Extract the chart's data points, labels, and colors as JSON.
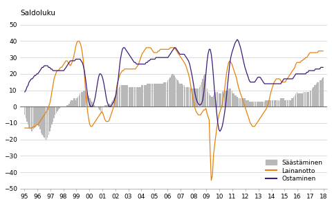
{
  "title": "Saldoluku",
  "xlim": [
    1994.7,
    2018.3
  ],
  "ylim": [
    -50,
    50
  ],
  "yticks": [
    -50,
    -40,
    -30,
    -20,
    -10,
    0,
    10,
    20,
    30,
    40,
    50
  ],
  "xtick_labels": [
    "95",
    "96",
    "97",
    "98",
    "99",
    "00",
    "01",
    "02",
    "03",
    "04",
    "05",
    "06",
    "07",
    "08",
    "09",
    "10",
    "11",
    "12",
    "13",
    "14",
    "15",
    "16",
    "17",
    "18"
  ],
  "xtick_positions": [
    1995,
    1996,
    1997,
    1998,
    1999,
    2000,
    2001,
    2002,
    2003,
    2004,
    2005,
    2006,
    2007,
    2008,
    2009,
    2010,
    2011,
    2012,
    2013,
    2014,
    2015,
    2016,
    2017,
    2018
  ],
  "bar_color": "#b8b8b8",
  "line_color_lainanotto": "#e8820a",
  "line_color_ostaminen": "#3d1a7a",
  "legend_labels": [
    "Säästäminen",
    "Lainanotto",
    "Ostaminen"
  ],
  "saastaminen_x": [
    1995.04,
    1995.12,
    1995.21,
    1995.29,
    1995.37,
    1995.46,
    1995.54,
    1995.62,
    1995.71,
    1995.79,
    1995.87,
    1995.96,
    1996.04,
    1996.12,
    1996.21,
    1996.29,
    1996.37,
    1996.46,
    1996.54,
    1996.62,
    1996.71,
    1996.79,
    1996.87,
    1996.96,
    1997.04,
    1997.12,
    1997.21,
    1997.29,
    1997.37,
    1997.46,
    1997.54,
    1997.62,
    1997.71,
    1997.79,
    1997.87,
    1997.96,
    1998.04,
    1998.12,
    1998.21,
    1998.29,
    1998.37,
    1998.46,
    1998.54,
    1998.62,
    1998.71,
    1998.79,
    1998.87,
    1998.96,
    1999.04,
    1999.12,
    1999.21,
    1999.29,
    1999.37,
    1999.46,
    1999.54,
    1999.62,
    1999.71,
    1999.79,
    1999.87,
    1999.96,
    2000.04,
    2000.12,
    2000.21,
    2000.29,
    2000.37,
    2000.46,
    2000.54,
    2000.62,
    2000.71,
    2000.79,
    2000.87,
    2000.96,
    2001.04,
    2001.12,
    2001.21,
    2001.29,
    2001.37,
    2001.46,
    2001.54,
    2001.62,
    2001.71,
    2001.79,
    2001.87,
    2001.96,
    2002.04,
    2002.12,
    2002.21,
    2002.29,
    2002.37,
    2002.46,
    2002.54,
    2002.62,
    2002.71,
    2002.79,
    2002.87,
    2002.96,
    2003.04,
    2003.12,
    2003.21,
    2003.29,
    2003.37,
    2003.46,
    2003.54,
    2003.62,
    2003.71,
    2003.79,
    2003.87,
    2003.96,
    2004.04,
    2004.12,
    2004.21,
    2004.29,
    2004.37,
    2004.46,
    2004.54,
    2004.62,
    2004.71,
    2004.79,
    2004.87,
    2004.96,
    2005.04,
    2005.12,
    2005.21,
    2005.29,
    2005.37,
    2005.46,
    2005.54,
    2005.62,
    2005.71,
    2005.79,
    2005.87,
    2005.96,
    2006.04,
    2006.12,
    2006.21,
    2006.29,
    2006.37,
    2006.46,
    2006.54,
    2006.62,
    2006.71,
    2006.79,
    2006.87,
    2006.96,
    2007.04,
    2007.12,
    2007.21,
    2007.29,
    2007.37,
    2007.46,
    2007.54,
    2007.62,
    2007.71,
    2007.79,
    2007.87,
    2007.96,
    2008.04,
    2008.12,
    2008.21,
    2008.29,
    2008.37,
    2008.46,
    2008.54,
    2008.62,
    2008.71,
    2008.79,
    2008.87,
    2008.96,
    2009.04,
    2009.12,
    2009.21,
    2009.29,
    2009.37,
    2009.46,
    2009.54,
    2009.62,
    2009.71,
    2009.79,
    2009.87,
    2009.96,
    2010.04,
    2010.12,
    2010.21,
    2010.29,
    2010.37,
    2010.46,
    2010.54,
    2010.62,
    2010.71,
    2010.79,
    2010.87,
    2010.96,
    2011.04,
    2011.12,
    2011.21,
    2011.29,
    2011.37,
    2011.46,
    2011.54,
    2011.62,
    2011.71,
    2011.79,
    2011.87,
    2011.96,
    2012.04,
    2012.12,
    2012.21,
    2012.29,
    2012.37,
    2012.46,
    2012.54,
    2012.62,
    2012.71,
    2012.79,
    2012.87,
    2012.96,
    2013.04,
    2013.12,
    2013.21,
    2013.29,
    2013.37,
    2013.46,
    2013.54,
    2013.62,
    2013.71,
    2013.79,
    2013.87,
    2013.96,
    2014.04,
    2014.12,
    2014.21,
    2014.29,
    2014.37,
    2014.46,
    2014.54,
    2014.62,
    2014.71,
    2014.79,
    2014.87,
    2014.96,
    2015.04,
    2015.12,
    2015.21,
    2015.29,
    2015.37,
    2015.46,
    2015.54,
    2015.62,
    2015.71,
    2015.79,
    2015.87,
    2015.96,
    2016.04,
    2016.12,
    2016.21,
    2016.29,
    2016.37,
    2016.46,
    2016.54,
    2016.62,
    2016.71,
    2016.79,
    2016.87,
    2016.96,
    2017.04,
    2017.12,
    2017.21,
    2017.29,
    2017.37,
    2017.46,
    2017.54,
    2017.62,
    2017.71,
    2017.79,
    2017.87,
    2017.96
  ],
  "saastaminen_y": [
    -5,
    -7,
    -9,
    -11,
    -13,
    -14,
    -15,
    -15,
    -14,
    -13,
    -12,
    -11,
    -11,
    -12,
    -14,
    -16,
    -17,
    -18,
    -19,
    -20,
    -20,
    -19,
    -17,
    -15,
    -13,
    -11,
    -9,
    -7,
    -5,
    -4,
    -3,
    -2,
    -1,
    0,
    0,
    0,
    0,
    0,
    0,
    1,
    1,
    2,
    3,
    4,
    4,
    5,
    5,
    4,
    5,
    6,
    7,
    8,
    9,
    9,
    10,
    10,
    10,
    9,
    8,
    7,
    5,
    4,
    3,
    2,
    1,
    0,
    0,
    0,
    -1,
    -2,
    -3,
    -4,
    0,
    0,
    1,
    1,
    1,
    1,
    2,
    2,
    3,
    4,
    5,
    6,
    8,
    10,
    11,
    12,
    13,
    13,
    13,
    13,
    13,
    13,
    13,
    13,
    12,
    12,
    12,
    12,
    12,
    12,
    12,
    12,
    12,
    12,
    12,
    12,
    13,
    13,
    13,
    13,
    13,
    14,
    14,
    14,
    14,
    14,
    14,
    14,
    14,
    14,
    14,
    14,
    14,
    14,
    14,
    14,
    15,
    15,
    15,
    15,
    16,
    17,
    18,
    19,
    20,
    20,
    19,
    18,
    17,
    16,
    15,
    14,
    14,
    14,
    13,
    13,
    12,
    12,
    12,
    12,
    12,
    11,
    11,
    11,
    11,
    11,
    11,
    11,
    11,
    12,
    13,
    15,
    17,
    19,
    20,
    21,
    11,
    9,
    8,
    7,
    6,
    6,
    7,
    8,
    9,
    9,
    9,
    8,
    8,
    8,
    9,
    10,
    10,
    10,
    10,
    10,
    11,
    11,
    11,
    10,
    8,
    8,
    7,
    7,
    6,
    5,
    5,
    5,
    5,
    5,
    5,
    5,
    4,
    4,
    4,
    3,
    3,
    3,
    3,
    3,
    3,
    3,
    3,
    3,
    3,
    3,
    3,
    3,
    3,
    3,
    4,
    4,
    4,
    4,
    4,
    4,
    4,
    4,
    4,
    4,
    4,
    4,
    4,
    4,
    5,
    5,
    5,
    5,
    4,
    4,
    4,
    4,
    4,
    4,
    5,
    5,
    6,
    7,
    8,
    9,
    8,
    8,
    8,
    8,
    8,
    9,
    9,
    9,
    9,
    9,
    9,
    10,
    10,
    11,
    12,
    13,
    13,
    14,
    15,
    15,
    16,
    16,
    17,
    18
  ],
  "lainanotto_x": [
    1995.04,
    1995.12,
    1995.21,
    1995.29,
    1995.37,
    1995.46,
    1995.54,
    1995.62,
    1995.71,
    1995.79,
    1995.87,
    1995.96,
    1996.04,
    1996.12,
    1996.21,
    1996.29,
    1996.37,
    1996.46,
    1996.54,
    1996.62,
    1996.71,
    1996.79,
    1996.87,
    1996.96,
    1997.04,
    1997.12,
    1997.21,
    1997.29,
    1997.37,
    1997.46,
    1997.54,
    1997.62,
    1997.71,
    1997.79,
    1997.87,
    1997.96,
    1998.04,
    1998.12,
    1998.21,
    1998.29,
    1998.37,
    1998.46,
    1998.54,
    1998.62,
    1998.71,
    1998.79,
    1998.87,
    1998.96,
    1999.04,
    1999.12,
    1999.21,
    1999.29,
    1999.37,
    1999.46,
    1999.54,
    1999.62,
    1999.71,
    1999.79,
    1999.87,
    1999.96,
    2000.04,
    2000.12,
    2000.21,
    2000.29,
    2000.37,
    2000.46,
    2000.54,
    2000.62,
    2000.71,
    2000.79,
    2000.87,
    2000.96,
    2001.04,
    2001.12,
    2001.21,
    2001.29,
    2001.37,
    2001.46,
    2001.54,
    2001.62,
    2001.71,
    2001.79,
    2001.87,
    2001.96,
    2002.04,
    2002.12,
    2002.21,
    2002.29,
    2002.37,
    2002.46,
    2002.54,
    2002.62,
    2002.71,
    2002.79,
    2002.87,
    2002.96,
    2003.04,
    2003.12,
    2003.21,
    2003.29,
    2003.37,
    2003.46,
    2003.54,
    2003.62,
    2003.71,
    2003.79,
    2003.87,
    2003.96,
    2004.04,
    2004.12,
    2004.21,
    2004.29,
    2004.37,
    2004.46,
    2004.54,
    2004.62,
    2004.71,
    2004.79,
    2004.87,
    2004.96,
    2005.04,
    2005.12,
    2005.21,
    2005.29,
    2005.37,
    2005.46,
    2005.54,
    2005.62,
    2005.71,
    2005.79,
    2005.87,
    2005.96,
    2006.04,
    2006.12,
    2006.21,
    2006.29,
    2006.37,
    2006.46,
    2006.54,
    2006.62,
    2006.71,
    2006.79,
    2006.87,
    2006.96,
    2007.04,
    2007.12,
    2007.21,
    2007.29,
    2007.37,
    2007.46,
    2007.54,
    2007.62,
    2007.71,
    2007.79,
    2007.87,
    2007.96,
    2008.04,
    2008.12,
    2008.21,
    2008.29,
    2008.37,
    2008.46,
    2008.54,
    2008.62,
    2008.71,
    2008.79,
    2008.87,
    2008.96,
    2009.04,
    2009.12,
    2009.21,
    2009.29,
    2009.37,
    2009.46,
    2009.54,
    2009.62,
    2009.71,
    2009.79,
    2009.87,
    2009.96,
    2010.04,
    2010.12,
    2010.21,
    2010.29,
    2010.37,
    2010.46,
    2010.54,
    2010.62,
    2010.71,
    2010.79,
    2010.87,
    2010.96,
    2011.04,
    2011.12,
    2011.21,
    2011.29,
    2011.37,
    2011.46,
    2011.54,
    2011.62,
    2011.71,
    2011.79,
    2011.87,
    2011.96,
    2012.04,
    2012.12,
    2012.21,
    2012.29,
    2012.37,
    2012.46,
    2012.54,
    2012.62,
    2012.71,
    2012.79,
    2012.87,
    2012.96,
    2013.04,
    2013.12,
    2013.21,
    2013.29,
    2013.37,
    2013.46,
    2013.54,
    2013.62,
    2013.71,
    2013.79,
    2013.87,
    2013.96,
    2014.04,
    2014.12,
    2014.21,
    2014.29,
    2014.37,
    2014.46,
    2014.54,
    2014.62,
    2014.71,
    2014.79,
    2014.87,
    2014.96,
    2015.04,
    2015.12,
    2015.21,
    2015.29,
    2015.37,
    2015.46,
    2015.54,
    2015.62,
    2015.71,
    2015.79,
    2015.87,
    2015.96,
    2016.04,
    2016.12,
    2016.21,
    2016.29,
    2016.37,
    2016.46,
    2016.54,
    2016.62,
    2016.71,
    2016.79,
    2016.87,
    2016.96,
    2017.04,
    2017.12,
    2017.21,
    2017.29,
    2017.37,
    2017.46,
    2017.54,
    2017.62,
    2017.71,
    2017.79,
    2017.87,
    2017.96
  ],
  "lainanotto_y": [
    -13,
    -13,
    -13,
    -13,
    -13,
    -13,
    -13,
    -13,
    -12,
    -12,
    -12,
    -11,
    -11,
    -10,
    -9,
    -8,
    -7,
    -6,
    -5,
    -4,
    -3,
    -2,
    0,
    2,
    5,
    9,
    13,
    17,
    19,
    21,
    22,
    22,
    23,
    24,
    24,
    25,
    26,
    27,
    28,
    28,
    27,
    26,
    25,
    26,
    28,
    30,
    33,
    37,
    39,
    40,
    40,
    39,
    37,
    33,
    28,
    20,
    10,
    2,
    -3,
    -8,
    -11,
    -12,
    -12,
    -11,
    -10,
    -9,
    -8,
    -7,
    -6,
    -5,
    -4,
    -3,
    -4,
    -6,
    -8,
    -9,
    -9,
    -9,
    -8,
    -6,
    -4,
    -2,
    0,
    3,
    8,
    13,
    16,
    18,
    20,
    21,
    22,
    22,
    23,
    23,
    23,
    23,
    23,
    23,
    23,
    23,
    23,
    23,
    23,
    24,
    25,
    26,
    28,
    30,
    32,
    33,
    34,
    35,
    36,
    36,
    36,
    36,
    36,
    35,
    34,
    33,
    33,
    33,
    33,
    34,
    34,
    35,
    35,
    35,
    35,
    35,
    35,
    35,
    35,
    35,
    36,
    36,
    36,
    36,
    36,
    35,
    34,
    33,
    32,
    31,
    30,
    29,
    28,
    27,
    26,
    24,
    22,
    20,
    17,
    13,
    9,
    5,
    2,
    -1,
    -3,
    -4,
    -5,
    -5,
    -5,
    -4,
    -3,
    -2,
    -2,
    -1,
    -4,
    -6,
    -8,
    -28,
    -45,
    -42,
    -30,
    -24,
    -18,
    -13,
    -9,
    -5,
    -3,
    -1,
    1,
    5,
    9,
    15,
    20,
    24,
    27,
    28,
    27,
    26,
    24,
    22,
    20,
    18,
    15,
    12,
    10,
    8,
    6,
    4,
    2,
    0,
    -2,
    -4,
    -6,
    -8,
    -10,
    -11,
    -12,
    -12,
    -12,
    -11,
    -10,
    -9,
    -8,
    -7,
    -6,
    -5,
    -4,
    -3,
    -2,
    -1,
    1,
    3,
    6,
    9,
    11,
    13,
    15,
    16,
    17,
    17,
    17,
    17,
    16,
    15,
    15,
    15,
    15,
    16,
    17,
    18,
    19,
    20,
    21,
    22,
    23,
    24,
    26,
    27,
    27,
    27,
    27,
    28,
    28,
    29,
    29,
    30,
    30,
    31,
    32,
    33,
    33,
    33,
    33,
    33,
    33,
    33,
    33,
    34,
    34,
    34,
    34,
    34
  ],
  "ostaminen_x": [
    1995.04,
    1995.12,
    1995.21,
    1995.29,
    1995.37,
    1995.46,
    1995.54,
    1995.62,
    1995.71,
    1995.79,
    1995.87,
    1995.96,
    1996.04,
    1996.12,
    1996.21,
    1996.29,
    1996.37,
    1996.46,
    1996.54,
    1996.62,
    1996.71,
    1996.79,
    1996.87,
    1996.96,
    1997.04,
    1997.12,
    1997.21,
    1997.29,
    1997.37,
    1997.46,
    1997.54,
    1997.62,
    1997.71,
    1997.79,
    1997.87,
    1997.96,
    1998.04,
    1998.12,
    1998.21,
    1998.29,
    1998.37,
    1998.46,
    1998.54,
    1998.62,
    1998.71,
    1998.79,
    1998.87,
    1998.96,
    1999.04,
    1999.12,
    1999.21,
    1999.29,
    1999.37,
    1999.46,
    1999.54,
    1999.62,
    1999.71,
    1999.79,
    1999.87,
    1999.96,
    2000.04,
    2000.12,
    2000.21,
    2000.29,
    2000.37,
    2000.46,
    2000.54,
    2000.62,
    2000.71,
    2000.79,
    2000.87,
    2000.96,
    2001.04,
    2001.12,
    2001.21,
    2001.29,
    2001.37,
    2001.46,
    2001.54,
    2001.62,
    2001.71,
    2001.79,
    2001.87,
    2001.96,
    2002.04,
    2002.12,
    2002.21,
    2002.29,
    2002.37,
    2002.46,
    2002.54,
    2002.62,
    2002.71,
    2002.79,
    2002.87,
    2002.96,
    2003.04,
    2003.12,
    2003.21,
    2003.29,
    2003.37,
    2003.46,
    2003.54,
    2003.62,
    2003.71,
    2003.79,
    2003.87,
    2003.96,
    2004.04,
    2004.12,
    2004.21,
    2004.29,
    2004.37,
    2004.46,
    2004.54,
    2004.62,
    2004.71,
    2004.79,
    2004.87,
    2004.96,
    2005.04,
    2005.12,
    2005.21,
    2005.29,
    2005.37,
    2005.46,
    2005.54,
    2005.62,
    2005.71,
    2005.79,
    2005.87,
    2005.96,
    2006.04,
    2006.12,
    2006.21,
    2006.29,
    2006.37,
    2006.46,
    2006.54,
    2006.62,
    2006.71,
    2006.79,
    2006.87,
    2006.96,
    2007.04,
    2007.12,
    2007.21,
    2007.29,
    2007.37,
    2007.46,
    2007.54,
    2007.62,
    2007.71,
    2007.79,
    2007.87,
    2007.96,
    2008.04,
    2008.12,
    2008.21,
    2008.29,
    2008.37,
    2008.46,
    2008.54,
    2008.62,
    2008.71,
    2008.79,
    2008.87,
    2008.96,
    2009.04,
    2009.12,
    2009.21,
    2009.29,
    2009.37,
    2009.46,
    2009.54,
    2009.62,
    2009.71,
    2009.79,
    2009.87,
    2009.96,
    2010.04,
    2010.12,
    2010.21,
    2010.29,
    2010.37,
    2010.46,
    2010.54,
    2010.62,
    2010.71,
    2010.79,
    2010.87,
    2010.96,
    2011.04,
    2011.12,
    2011.21,
    2011.29,
    2011.37,
    2011.46,
    2011.54,
    2011.62,
    2011.71,
    2011.79,
    2011.87,
    2011.96,
    2012.04,
    2012.12,
    2012.21,
    2012.29,
    2012.37,
    2012.46,
    2012.54,
    2012.62,
    2012.71,
    2012.79,
    2012.87,
    2012.96,
    2013.04,
    2013.12,
    2013.21,
    2013.29,
    2013.37,
    2013.46,
    2013.54,
    2013.62,
    2013.71,
    2013.79,
    2013.87,
    2013.96,
    2014.04,
    2014.12,
    2014.21,
    2014.29,
    2014.37,
    2014.46,
    2014.54,
    2014.62,
    2014.71,
    2014.79,
    2014.87,
    2014.96,
    2015.04,
    2015.12,
    2015.21,
    2015.29,
    2015.37,
    2015.46,
    2015.54,
    2015.62,
    2015.71,
    2015.79,
    2015.87,
    2015.96,
    2016.04,
    2016.12,
    2016.21,
    2016.29,
    2016.37,
    2016.46,
    2016.54,
    2016.62,
    2016.71,
    2016.79,
    2016.87,
    2016.96,
    2017.04,
    2017.12,
    2017.21,
    2017.29,
    2017.37,
    2017.46,
    2017.54,
    2017.62,
    2017.71,
    2017.79,
    2017.87,
    2017.96
  ],
  "ostaminen_y": [
    9,
    10,
    12,
    13,
    15,
    16,
    17,
    17,
    18,
    19,
    19,
    20,
    20,
    21,
    22,
    23,
    24,
    24,
    25,
    25,
    25,
    25,
    24,
    24,
    23,
    23,
    22,
    22,
    22,
    22,
    22,
    22,
    22,
    22,
    22,
    22,
    22,
    23,
    24,
    25,
    26,
    27,
    28,
    28,
    28,
    28,
    28,
    29,
    29,
    29,
    29,
    29,
    28,
    27,
    25,
    22,
    17,
    12,
    7,
    3,
    1,
    0,
    0,
    1,
    3,
    6,
    10,
    14,
    18,
    20,
    20,
    19,
    17,
    14,
    10,
    6,
    3,
    1,
    0,
    0,
    1,
    2,
    3,
    5,
    7,
    11,
    16,
    22,
    28,
    32,
    35,
    36,
    36,
    35,
    34,
    33,
    32,
    31,
    30,
    29,
    28,
    27,
    27,
    26,
    26,
    26,
    26,
    26,
    26,
    26,
    26,
    26,
    27,
    27,
    28,
    28,
    29,
    29,
    29,
    29,
    29,
    30,
    30,
    30,
    30,
    30,
    30,
    30,
    30,
    30,
    30,
    30,
    30,
    31,
    32,
    33,
    34,
    35,
    36,
    36,
    35,
    34,
    33,
    32,
    32,
    32,
    32,
    32,
    31,
    30,
    29,
    28,
    26,
    23,
    20,
    16,
    12,
    8,
    5,
    3,
    2,
    1,
    1,
    2,
    4,
    8,
    14,
    20,
    27,
    32,
    35,
    35,
    32,
    26,
    18,
    10,
    3,
    -4,
    -10,
    -14,
    -15,
    -14,
    -12,
    -9,
    -5,
    0,
    6,
    13,
    20,
    26,
    30,
    33,
    35,
    37,
    39,
    40,
    41,
    40,
    38,
    36,
    33,
    30,
    27,
    24,
    22,
    20,
    18,
    16,
    15,
    15,
    15,
    15,
    15,
    16,
    17,
    18,
    18,
    18,
    17,
    16,
    15,
    14,
    14,
    14,
    14,
    14,
    14,
    14,
    14,
    14,
    14,
    14,
    14,
    14,
    14,
    14,
    14,
    15,
    16,
    17,
    17,
    17,
    17,
    17,
    17,
    17,
    17,
    17,
    18,
    19,
    20,
    20,
    20,
    20,
    20,
    20,
    20,
    20,
    20,
    20,
    21,
    21,
    22,
    22,
    22,
    22,
    22,
    22,
    23,
    23,
    23,
    23,
    23,
    24,
    24,
    24
  ]
}
